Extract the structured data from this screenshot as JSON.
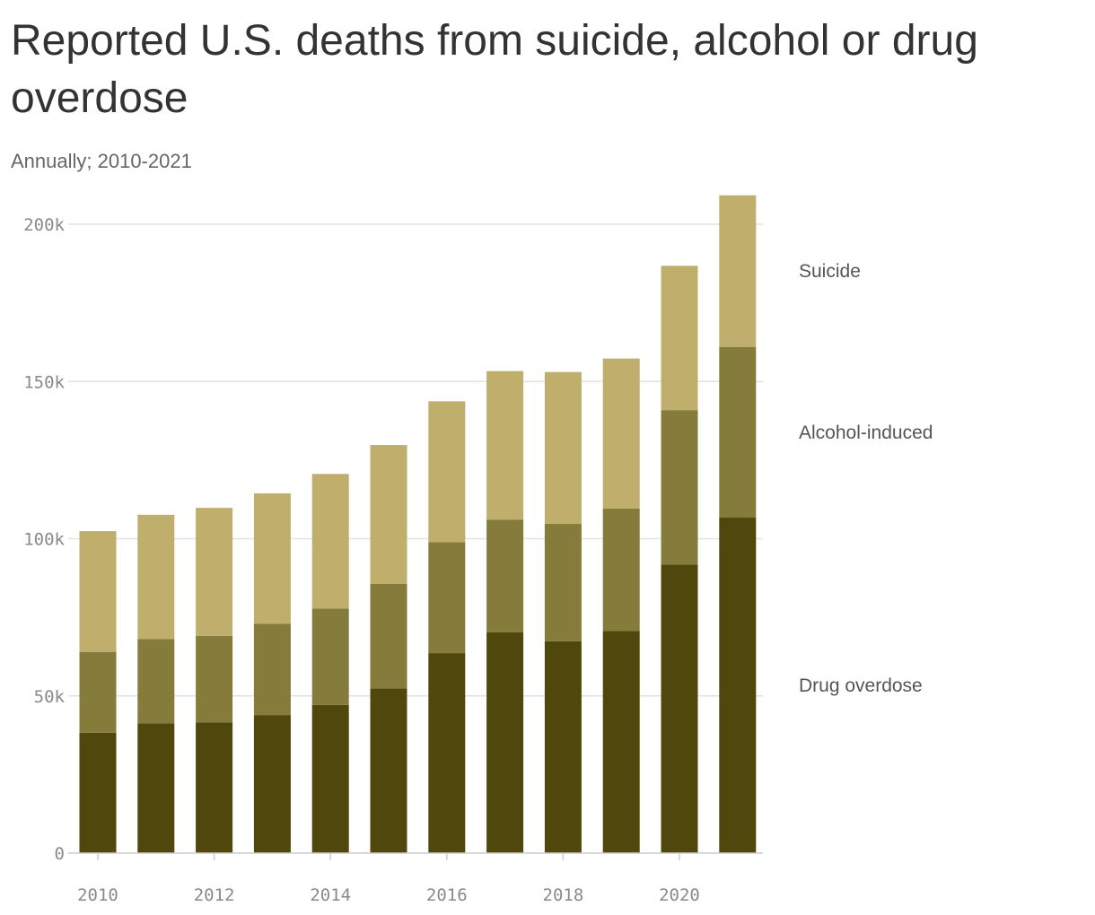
{
  "chart_data": {
    "type": "bar",
    "stacked": true,
    "title": "Reported U.S. deaths from suicide, alcohol or drug overdose",
    "subtitle": "Annually; 2010-2021",
    "categories": [
      "2010",
      "2011",
      "2012",
      "2013",
      "2014",
      "2015",
      "2016",
      "2017",
      "2018",
      "2019",
      "2020",
      "2021"
    ],
    "series": [
      {
        "name": "Drug overdose",
        "color": "#50470d",
        "values": [
          38300,
          41300,
          41500,
          43900,
          47100,
          52400,
          63600,
          70200,
          67400,
          70600,
          91800,
          106700
        ]
      },
      {
        "name": "Alcohol-induced",
        "color": "#857b3b",
        "values": [
          25700,
          26800,
          27600,
          29000,
          30700,
          33200,
          35300,
          35800,
          37300,
          39000,
          49100,
          54300
        ]
      },
      {
        "name": "Suicide",
        "color": "#bfae6c",
        "values": [
          38400,
          39500,
          40700,
          41500,
          42800,
          44200,
          44800,
          47300,
          48300,
          47700,
          45900,
          48200
        ]
      }
    ],
    "ylim": [
      0,
      210000
    ],
    "yticks": [
      0,
      50000,
      100000,
      150000,
      200000
    ],
    "ytick_labels": [
      "0",
      "50k",
      "100k",
      "150k",
      "200k"
    ],
    "xticks": [
      "2010",
      "2012",
      "2014",
      "2016",
      "2018",
      "2020"
    ],
    "xlabel": "",
    "ylabel": "",
    "grid": true,
    "legend": "direct labels at right"
  }
}
